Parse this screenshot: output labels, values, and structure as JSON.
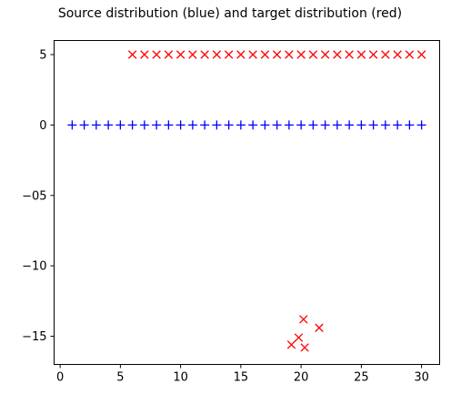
{
  "chart_data": {
    "type": "scatter",
    "title": "Source distribution (blue) and target distribution (red)",
    "xlabel": "",
    "ylabel": "",
    "xlim": [
      -0.5,
      31.5
    ],
    "ylim": [
      -17,
      6
    ],
    "xticks": [
      0,
      5,
      10,
      15,
      20,
      25,
      30
    ],
    "yticks": [
      5,
      0,
      -5,
      -10,
      -15
    ],
    "xtick_labels": [
      "0",
      "5",
      "10",
      "15",
      "20",
      "25",
      "30"
    ],
    "ytick_labels": [
      "5",
      "0",
      "−05",
      "−10",
      "−15"
    ],
    "grid": false,
    "legend": "none",
    "series": [
      {
        "color": "#0000ff",
        "marker": "plus",
        "points": [
          [
            1,
            0
          ],
          [
            2,
            0
          ],
          [
            3,
            0
          ],
          [
            4,
            0
          ],
          [
            5,
            0
          ],
          [
            6,
            0
          ],
          [
            7,
            0
          ],
          [
            8,
            0
          ],
          [
            9,
            0
          ],
          [
            10,
            0
          ],
          [
            11,
            0
          ],
          [
            12,
            0
          ],
          [
            13,
            0
          ],
          [
            14,
            0
          ],
          [
            15,
            0
          ],
          [
            16,
            0
          ],
          [
            17,
            0
          ],
          [
            18,
            0
          ],
          [
            19,
            0
          ],
          [
            20,
            0
          ],
          [
            21,
            0
          ],
          [
            22,
            0
          ],
          [
            23,
            0
          ],
          [
            24,
            0
          ],
          [
            25,
            0
          ],
          [
            26,
            0
          ],
          [
            27,
            0
          ],
          [
            28,
            0
          ],
          [
            29,
            0
          ],
          [
            30,
            0
          ]
        ]
      },
      {
        "color": "#ff0000",
        "marker": "x",
        "points": [
          [
            6,
            5
          ],
          [
            7,
            5
          ],
          [
            8,
            5
          ],
          [
            9,
            5
          ],
          [
            10,
            5
          ],
          [
            11,
            5
          ],
          [
            12,
            5
          ],
          [
            13,
            5
          ],
          [
            14,
            5
          ],
          [
            15,
            5
          ],
          [
            16,
            5
          ],
          [
            17,
            5
          ],
          [
            18,
            5
          ],
          [
            19,
            5
          ],
          [
            20,
            5
          ],
          [
            21,
            5
          ],
          [
            22,
            5
          ],
          [
            23,
            5
          ],
          [
            24,
            5
          ],
          [
            25,
            5
          ],
          [
            26,
            5
          ],
          [
            27,
            5
          ],
          [
            28,
            5
          ],
          [
            29,
            5
          ],
          [
            30,
            5
          ],
          [
            20.2,
            -13.8
          ],
          [
            21.5,
            -14.4
          ],
          [
            19.8,
            -15.1
          ],
          [
            19.2,
            -15.6
          ],
          [
            20.3,
            -15.8
          ]
        ]
      }
    ]
  }
}
